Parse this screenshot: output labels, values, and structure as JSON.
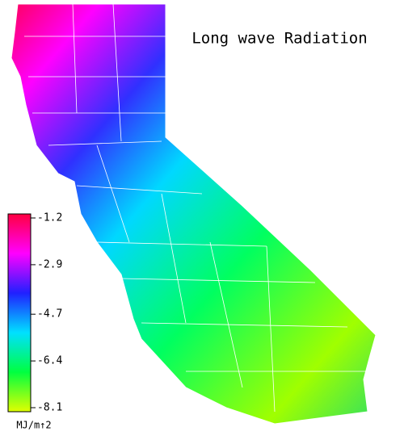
{
  "title": "Long wave Radiation",
  "colorbar": {
    "ticks": [
      -1.2,
      -2.9,
      -4.7,
      -6.4,
      -8.1
    ],
    "colors": [
      "#ff0040",
      "#ff00ff",
      "#2020ff",
      "#00e0ff",
      "#00ff40",
      "#e0ff00"
    ],
    "unit": "MJ/m↑2"
  }
}
